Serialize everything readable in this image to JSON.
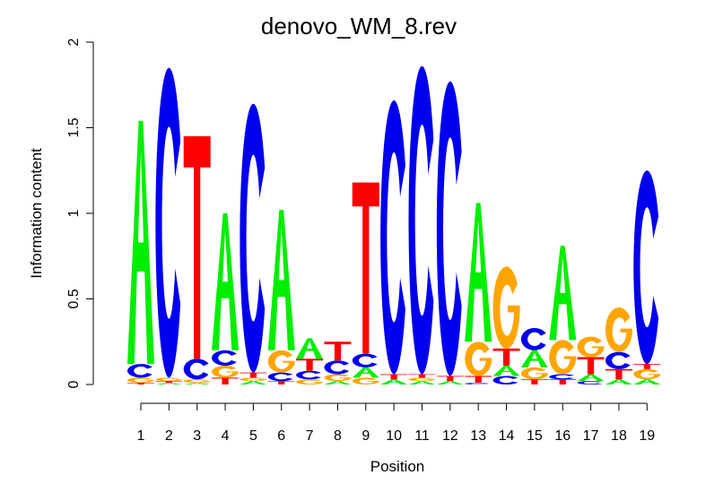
{
  "chart_data": {
    "type": "sequence-logo",
    "title": "denovo_WM_8.rev",
    "xlabel": "Position",
    "ylabel": "Information content",
    "ylim": [
      0,
      2
    ],
    "y_ticks": [
      "0",
      "0.5",
      "1",
      "1.5",
      "2"
    ],
    "positions": [
      "1",
      "2",
      "3",
      "4",
      "5",
      "6",
      "7",
      "8",
      "9",
      "10",
      "11",
      "12",
      "13",
      "14",
      "15",
      "16",
      "17",
      "18",
      "19"
    ],
    "colors": {
      "A": "#00ee00",
      "C": "#0000ee",
      "G": "#ffa500",
      "T": "#ff0000"
    },
    "stacks": [
      [
        [
          "T",
          0.01
        ],
        [
          "G",
          0.03
        ],
        [
          "C",
          0.08
        ],
        [
          "A",
          1.42
        ]
      ],
      [
        [
          "A",
          0.01
        ],
        [
          "T",
          0.01
        ],
        [
          "G",
          0.02
        ],
        [
          "C",
          1.81
        ]
      ],
      [
        [
          "A",
          0.01
        ],
        [
          "G",
          0.02
        ],
        [
          "C",
          0.12
        ],
        [
          "T",
          1.3
        ]
      ],
      [
        [
          "T",
          0.04
        ],
        [
          "G",
          0.07
        ],
        [
          "C",
          0.09
        ],
        [
          "A",
          0.8
        ]
      ],
      [
        [
          "A",
          0.02
        ],
        [
          "G",
          0.02
        ],
        [
          "T",
          0.03
        ],
        [
          "C",
          1.57
        ]
      ],
      [
        [
          "T",
          0.02
        ],
        [
          "C",
          0.05
        ],
        [
          "G",
          0.13
        ],
        [
          "A",
          0.82
        ]
      ],
      [
        [
          "G",
          0.03
        ],
        [
          "C",
          0.05
        ],
        [
          "T",
          0.07
        ],
        [
          "A",
          0.12
        ]
      ],
      [
        [
          "A",
          0.02
        ],
        [
          "G",
          0.04
        ],
        [
          "C",
          0.08
        ],
        [
          "T",
          0.11
        ]
      ],
      [
        [
          "G",
          0.04
        ],
        [
          "A",
          0.06
        ],
        [
          "C",
          0.08
        ],
        [
          "T",
          1.0
        ]
      ],
      [
        [
          "A",
          0.03
        ],
        [
          "T",
          0.03
        ],
        [
          "C",
          1.6
        ]
      ],
      [
        [
          "A",
          0.02
        ],
        [
          "G",
          0.02
        ],
        [
          "T",
          0.02
        ],
        [
          "C",
          1.8
        ]
      ],
      [
        [
          "A",
          0.02
        ],
        [
          "T",
          0.03
        ],
        [
          "C",
          1.72
        ]
      ],
      [
        [
          "C",
          0.01
        ],
        [
          "T",
          0.04
        ],
        [
          "G",
          0.2
        ],
        [
          "A",
          0.81
        ]
      ],
      [
        [
          "C",
          0.05
        ],
        [
          "A",
          0.06
        ],
        [
          "T",
          0.1
        ],
        [
          "G",
          0.48
        ]
      ],
      [
        [
          "T",
          0.03
        ],
        [
          "G",
          0.07
        ],
        [
          "A",
          0.1
        ],
        [
          "C",
          0.13
        ]
      ],
      [
        [
          "T",
          0.03
        ],
        [
          "C",
          0.03
        ],
        [
          "G",
          0.2
        ],
        [
          "A",
          0.55
        ]
      ],
      [
        [
          "C",
          0.02
        ],
        [
          "A",
          0.04
        ],
        [
          "T",
          0.1
        ],
        [
          "G",
          0.12
        ]
      ],
      [
        [
          "A",
          0.03
        ],
        [
          "T",
          0.06
        ],
        [
          "C",
          0.1
        ],
        [
          "G",
          0.26
        ]
      ],
      [
        [
          "A",
          0.03
        ],
        [
          "G",
          0.06
        ],
        [
          "T",
          0.03
        ],
        [
          "C",
          1.13
        ]
      ]
    ]
  }
}
